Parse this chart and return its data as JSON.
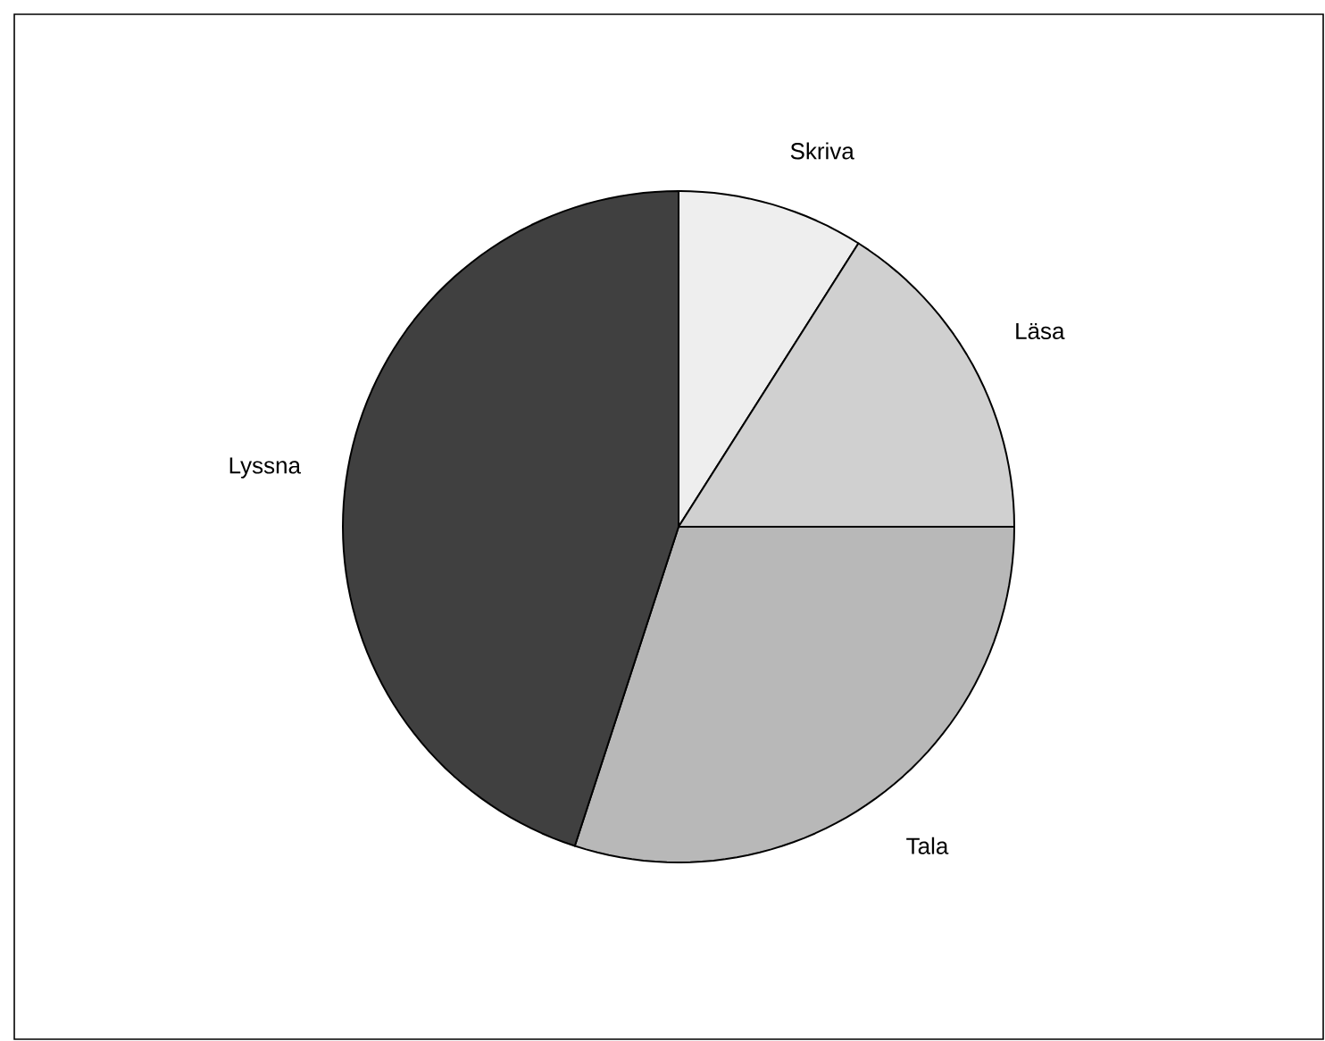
{
  "chart_data": {
    "type": "pie",
    "categories": [
      "Skriva",
      "Läsa",
      "Tala",
      "Lyssna"
    ],
    "values": [
      9,
      16,
      30,
      45
    ],
    "colors": [
      "#eeeeee",
      "#d0d0d0",
      "#b8b8b8",
      "#404040"
    ]
  }
}
